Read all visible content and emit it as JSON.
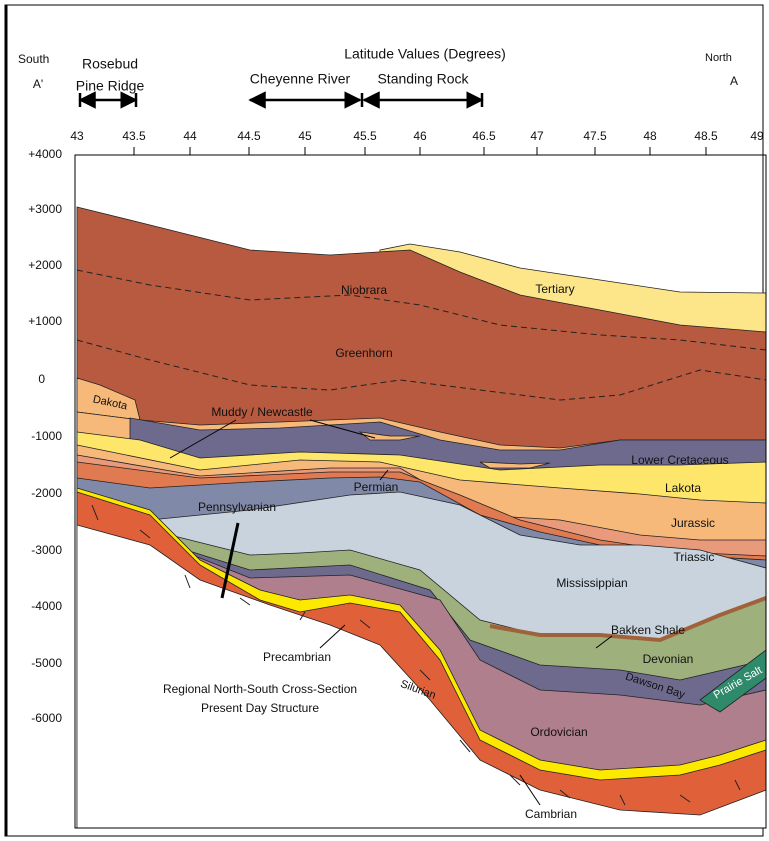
{
  "header": {
    "south": "South",
    "south_marker": "A'",
    "rosebud": "Rosebud",
    "pine_ridge": "Pine Ridge",
    "title": "Latitude  Values (Degrees)",
    "cheyenne_river": "Cheyenne River",
    "standing_rock": "Standing Rock",
    "north": "North",
    "north_marker": "A"
  },
  "x_axis": {
    "ticks": [
      "43",
      "43.5",
      "44",
      "44.5",
      "45",
      "45.5",
      "46",
      "46.5",
      "47",
      "47.5",
      "48",
      "48.5",
      "49"
    ]
  },
  "y_axis": {
    "ticks": [
      "+4000",
      "+3000",
      "+2000",
      "+1000",
      "0",
      "-1000",
      "-2000",
      "-3000",
      "-4000",
      "-5000",
      "-6000"
    ]
  },
  "layers": {
    "niobrara": "Niobrara",
    "tertiary": "Tertiary",
    "greenhorn": "Greenhorn",
    "dakota": "Dakota",
    "muddy": "Muddy / Newcastle",
    "lower_cretaceous": "Lower Cretaceous",
    "lakota": "Lakota",
    "permian": "Permian",
    "pennsylvanian": "Pennsylvanian",
    "jurassic": "Jurassic",
    "triassic": "Triassic",
    "mississippian": "Mississippian",
    "bakken": "Bakken Shale",
    "devonian": "Devonian",
    "silurian": "Silurian",
    "dawson_bay": "Dawson Bay",
    "prairie_salt": "Prairie Salt",
    "ordovician": "Ordovician",
    "precambrian": "Precambrian",
    "cambrian": "Cambrian"
  },
  "caption": {
    "line1": "Regional North-South Cross-Section",
    "line2": "Present Day Structure"
  }
}
